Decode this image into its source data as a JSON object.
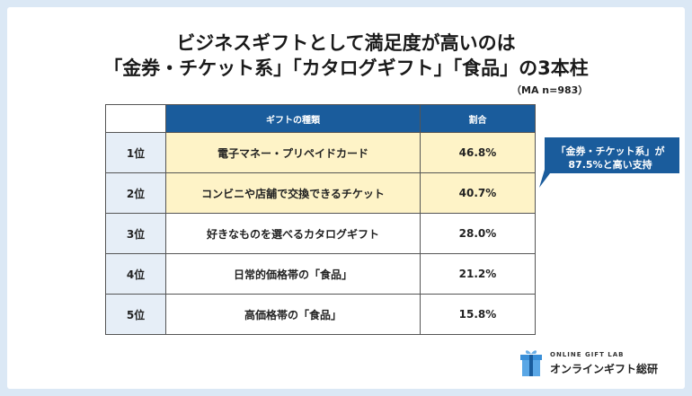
{
  "title_line1": "ビジネスギフトとして満足度が高いのは",
  "title_line2": "「金券・チケット系」「カタログギフト」「食品」の3本柱",
  "note": "（MA n=983）",
  "chart_data": {
    "type": "table",
    "columns": [
      "",
      "ギフトの種類",
      "割合"
    ],
    "rows": [
      {
        "rank": "1位",
        "name": "電子マネー・プリペイドカード",
        "value": "46.8%",
        "highlight": true
      },
      {
        "rank": "2位",
        "name": "コンビニや店舗で交換できるチケット",
        "value": "40.7%",
        "highlight": true
      },
      {
        "rank": "3位",
        "name": "好きなものを選べるカタログギフト",
        "value": "28.0%",
        "highlight": false
      },
      {
        "rank": "4位",
        "name": "日常的価格帯の「食品」",
        "value": "21.2%",
        "highlight": false
      },
      {
        "rank": "5位",
        "name": "高価格帯の「食品」",
        "value": "15.8%",
        "highlight": false
      }
    ]
  },
  "callout": {
    "line1": "「金券・チケット系」が",
    "line2": "87.5%と高い支持"
  },
  "logo": {
    "small": "ONLINE GIFT LAB",
    "big": "オンラインギフト総研"
  },
  "colors": {
    "header": "#1a5c9c",
    "highlight": "#fef3c7",
    "rank_bg": "#e6eef7",
    "background": "#dbe8f5"
  }
}
